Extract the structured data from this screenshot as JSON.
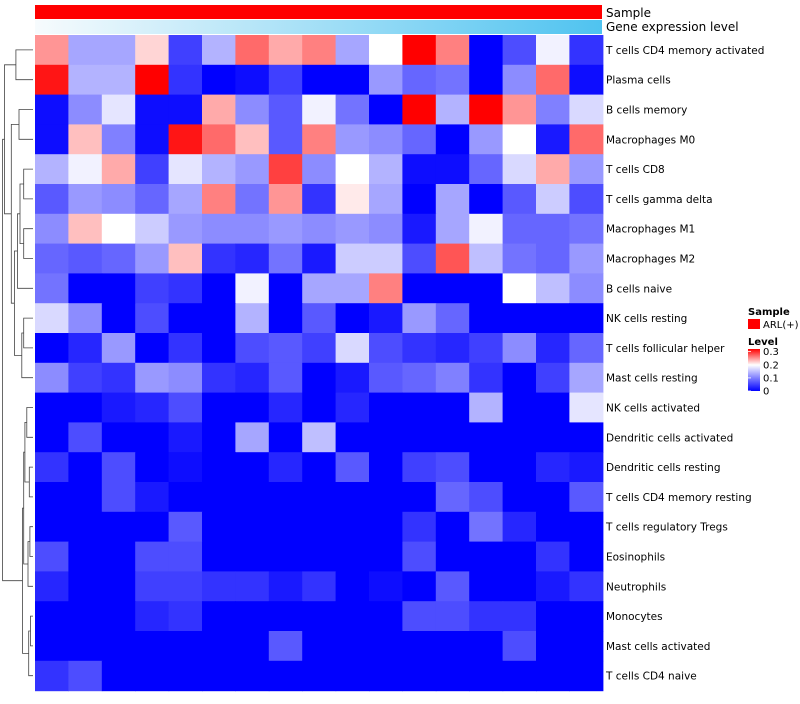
{
  "chart_data": {
    "type": "heatmap",
    "annotation_tracks": [
      {
        "label": "Sample",
        "color_start": "#ff0000",
        "color_end": "#ff0000"
      },
      {
        "label": "Gene expression level",
        "color_start": "#f7fbfd",
        "color_end": "#4fc3f0"
      }
    ],
    "rows": [
      "T cells CD4 memory activated",
      "Plasma cells",
      "B cells memory",
      "Macrophages M0",
      "T cells CD8",
      "T cells gamma delta",
      "Macrophages M1",
      "Macrophages M2",
      "B cells naive",
      "NK cells resting",
      "T cells follicular helper",
      "Mast cells resting",
      "NK cells activated",
      "Dendritic cells activated",
      "Dendritic cells resting",
      "T cells CD4 memory resting",
      "T cells regulatory  Tregs",
      "Eosinophils",
      "Neutrophils",
      "Monocytes",
      "Mast cells activated",
      "T cells CD4 naive"
    ],
    "values": [
      [
        0.25,
        0.13,
        0.13,
        0.22,
        0.05,
        0.14,
        0.27,
        0.24,
        0.26,
        0.13,
        0.2,
        0.32,
        0.26,
        0.0,
        0.06,
        0.19,
        0.04
      ],
      [
        0.31,
        0.14,
        0.14,
        0.32,
        0.04,
        0.0,
        0.01,
        0.05,
        0.0,
        0.0,
        0.12,
        0.08,
        0.09,
        0.0,
        0.11,
        0.27,
        0.01
      ],
      [
        0.01,
        0.11,
        0.18,
        0.01,
        0.01,
        0.24,
        0.11,
        0.07,
        0.19,
        0.09,
        0.0,
        0.32,
        0.14,
        0.32,
        0.25,
        0.1,
        0.17
      ],
      [
        0.01,
        0.23,
        0.1,
        0.01,
        0.31,
        0.27,
        0.23,
        0.07,
        0.26,
        0.12,
        0.11,
        0.08,
        0.0,
        0.12,
        0.2,
        0.02,
        0.27
      ],
      [
        0.14,
        0.19,
        0.24,
        0.05,
        0.18,
        0.14,
        0.12,
        0.29,
        0.11,
        0.2,
        0.14,
        0.01,
        0.01,
        0.08,
        0.17,
        0.24,
        0.12
      ],
      [
        0.07,
        0.12,
        0.11,
        0.08,
        0.13,
        0.26,
        0.09,
        0.25,
        0.04,
        0.21,
        0.13,
        0.0,
        0.13,
        0.0,
        0.07,
        0.16,
        0.06
      ],
      [
        0.11,
        0.23,
        0.2,
        0.16,
        0.12,
        0.11,
        0.11,
        0.12,
        0.11,
        0.12,
        0.11,
        0.02,
        0.13,
        0.19,
        0.08,
        0.08,
        0.09
      ],
      [
        0.08,
        0.07,
        0.08,
        0.12,
        0.23,
        0.04,
        0.03,
        0.09,
        0.02,
        0.16,
        0.16,
        0.06,
        0.28,
        0.15,
        0.09,
        0.08,
        0.12
      ],
      [
        0.09,
        0.0,
        0.0,
        0.05,
        0.04,
        0.0,
        0.19,
        0.0,
        0.13,
        0.13,
        0.26,
        0.0,
        0.0,
        0.0,
        0.2,
        0.15,
        0.11
      ],
      [
        0.17,
        0.11,
        0.0,
        0.06,
        0.0,
        0.0,
        0.14,
        0.0,
        0.07,
        0.0,
        0.02,
        0.12,
        0.08,
        0.0,
        0.0,
        0.0,
        0.0
      ],
      [
        0.0,
        0.03,
        0.12,
        0.0,
        0.04,
        0.0,
        0.06,
        0.07,
        0.05,
        0.17,
        0.06,
        0.04,
        0.03,
        0.05,
        0.11,
        0.03,
        0.08
      ],
      [
        0.11,
        0.05,
        0.04,
        0.12,
        0.11,
        0.04,
        0.03,
        0.07,
        0.0,
        0.02,
        0.07,
        0.08,
        0.1,
        0.04,
        0.0,
        0.05,
        0.13
      ],
      [
        0.0,
        0.0,
        0.02,
        0.03,
        0.06,
        0.0,
        0.0,
        0.03,
        0.0,
        0.03,
        0.0,
        0.0,
        0.0,
        0.14,
        0.0,
        0.0,
        0.18
      ],
      [
        0.0,
        0.06,
        0.0,
        0.0,
        0.02,
        0.0,
        0.13,
        0.0,
        0.15,
        0.0,
        0.0,
        0.0,
        0.0,
        0.0,
        0.0,
        0.0,
        0.0
      ],
      [
        0.04,
        0.0,
        0.06,
        0.0,
        0.01,
        0.0,
        0.0,
        0.03,
        0.0,
        0.07,
        0.0,
        0.05,
        0.06,
        0.0,
        0.0,
        0.03,
        0.02
      ],
      [
        0.0,
        0.0,
        0.06,
        0.02,
        0.0,
        0.0,
        0.0,
        0.0,
        0.0,
        0.0,
        0.0,
        0.0,
        0.08,
        0.06,
        0.0,
        0.0,
        0.07
      ],
      [
        0.0,
        0.0,
        0.0,
        0.0,
        0.07,
        0.0,
        0.0,
        0.0,
        0.0,
        0.0,
        0.0,
        0.04,
        0.0,
        0.09,
        0.03,
        0.0,
        0.0
      ],
      [
        0.06,
        0.0,
        0.0,
        0.06,
        0.06,
        0.0,
        0.0,
        0.0,
        0.0,
        0.0,
        0.0,
        0.06,
        0.0,
        0.0,
        0.0,
        0.04,
        0.0
      ],
      [
        0.03,
        0.0,
        0.0,
        0.05,
        0.05,
        0.04,
        0.04,
        0.02,
        0.04,
        0.0,
        0.01,
        0.0,
        0.07,
        0.0,
        0.0,
        0.02,
        0.04
      ],
      [
        0.0,
        0.0,
        0.0,
        0.03,
        0.04,
        0.0,
        0.0,
        0.0,
        0.0,
        0.0,
        0.0,
        0.06,
        0.06,
        0.04,
        0.04,
        0.0,
        0.0
      ],
      [
        0.0,
        0.0,
        0.0,
        0.0,
        0.0,
        0.0,
        0.0,
        0.07,
        0.0,
        0.0,
        0.0,
        0.0,
        0.0,
        0.0,
        0.06,
        0.0,
        0.0
      ],
      [
        0.04,
        0.06,
        0.0,
        0.0,
        0.0,
        0.0,
        0.0,
        0.0,
        0.0,
        0.0,
        0.0,
        0.0,
        0.0,
        0.0,
        0.0,
        0.0,
        0.0
      ]
    ],
    "color_scale": {
      "low": "#0000ff",
      "mid": "#ffffff",
      "high": "#ff0000",
      "min": 0,
      "mid_value": 0.2,
      "max": 0.32
    },
    "legend": {
      "sample_title": "Sample",
      "sample_items": [
        {
          "label": "ARL(+)",
          "color": "#ff0000"
        }
      ],
      "level_title": "Level",
      "level_ticks": [
        "0.3",
        "0.2",
        "0.1",
        "0"
      ],
      "level_tick_values": [
        0.3,
        0.2,
        0.1,
        0.0
      ]
    },
    "dendrogram": "row clustering tree on left"
  }
}
